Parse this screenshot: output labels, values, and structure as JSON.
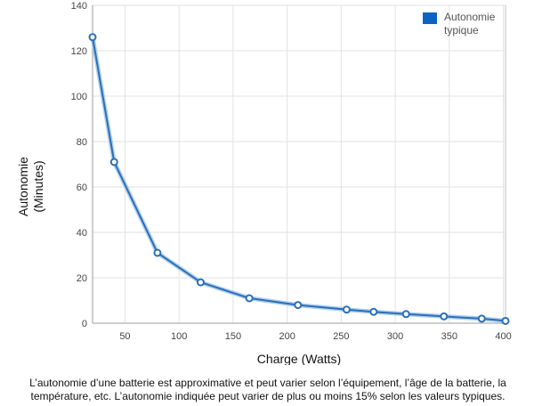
{
  "chart_data": {
    "type": "line",
    "xlabel": "Charge (Watts)",
    "ylabel_line1": "Autonomie",
    "ylabel_line2": "(Minutes)",
    "xlim": [
      20,
      402
    ],
    "ylim": [
      0,
      140
    ],
    "x_ticks": [
      50,
      100,
      150,
      200,
      250,
      300,
      350,
      400
    ],
    "y_ticks": [
      0,
      20,
      40,
      60,
      80,
      100,
      120,
      140
    ],
    "grid": true,
    "legend_position": "top-right",
    "series": [
      {
        "name": "Autonomie typique",
        "color": "#2a6fb8",
        "x": [
          20,
          40,
          80,
          120,
          165,
          210,
          255,
          280,
          310,
          345,
          380,
          402
        ],
        "y": [
          126,
          71,
          31,
          18,
          11,
          8,
          6,
          5,
          4,
          3,
          2,
          1
        ]
      }
    ]
  },
  "legend": {
    "label": "Autonomie typique"
  },
  "footnote": "L’autonomie d’une batterie est approximative et peut varier selon l’équipement, l’âge de la batterie, la température, etc. L’autonomie indiquée peut varier de plus ou moins 15% selon les valeurs typiques."
}
